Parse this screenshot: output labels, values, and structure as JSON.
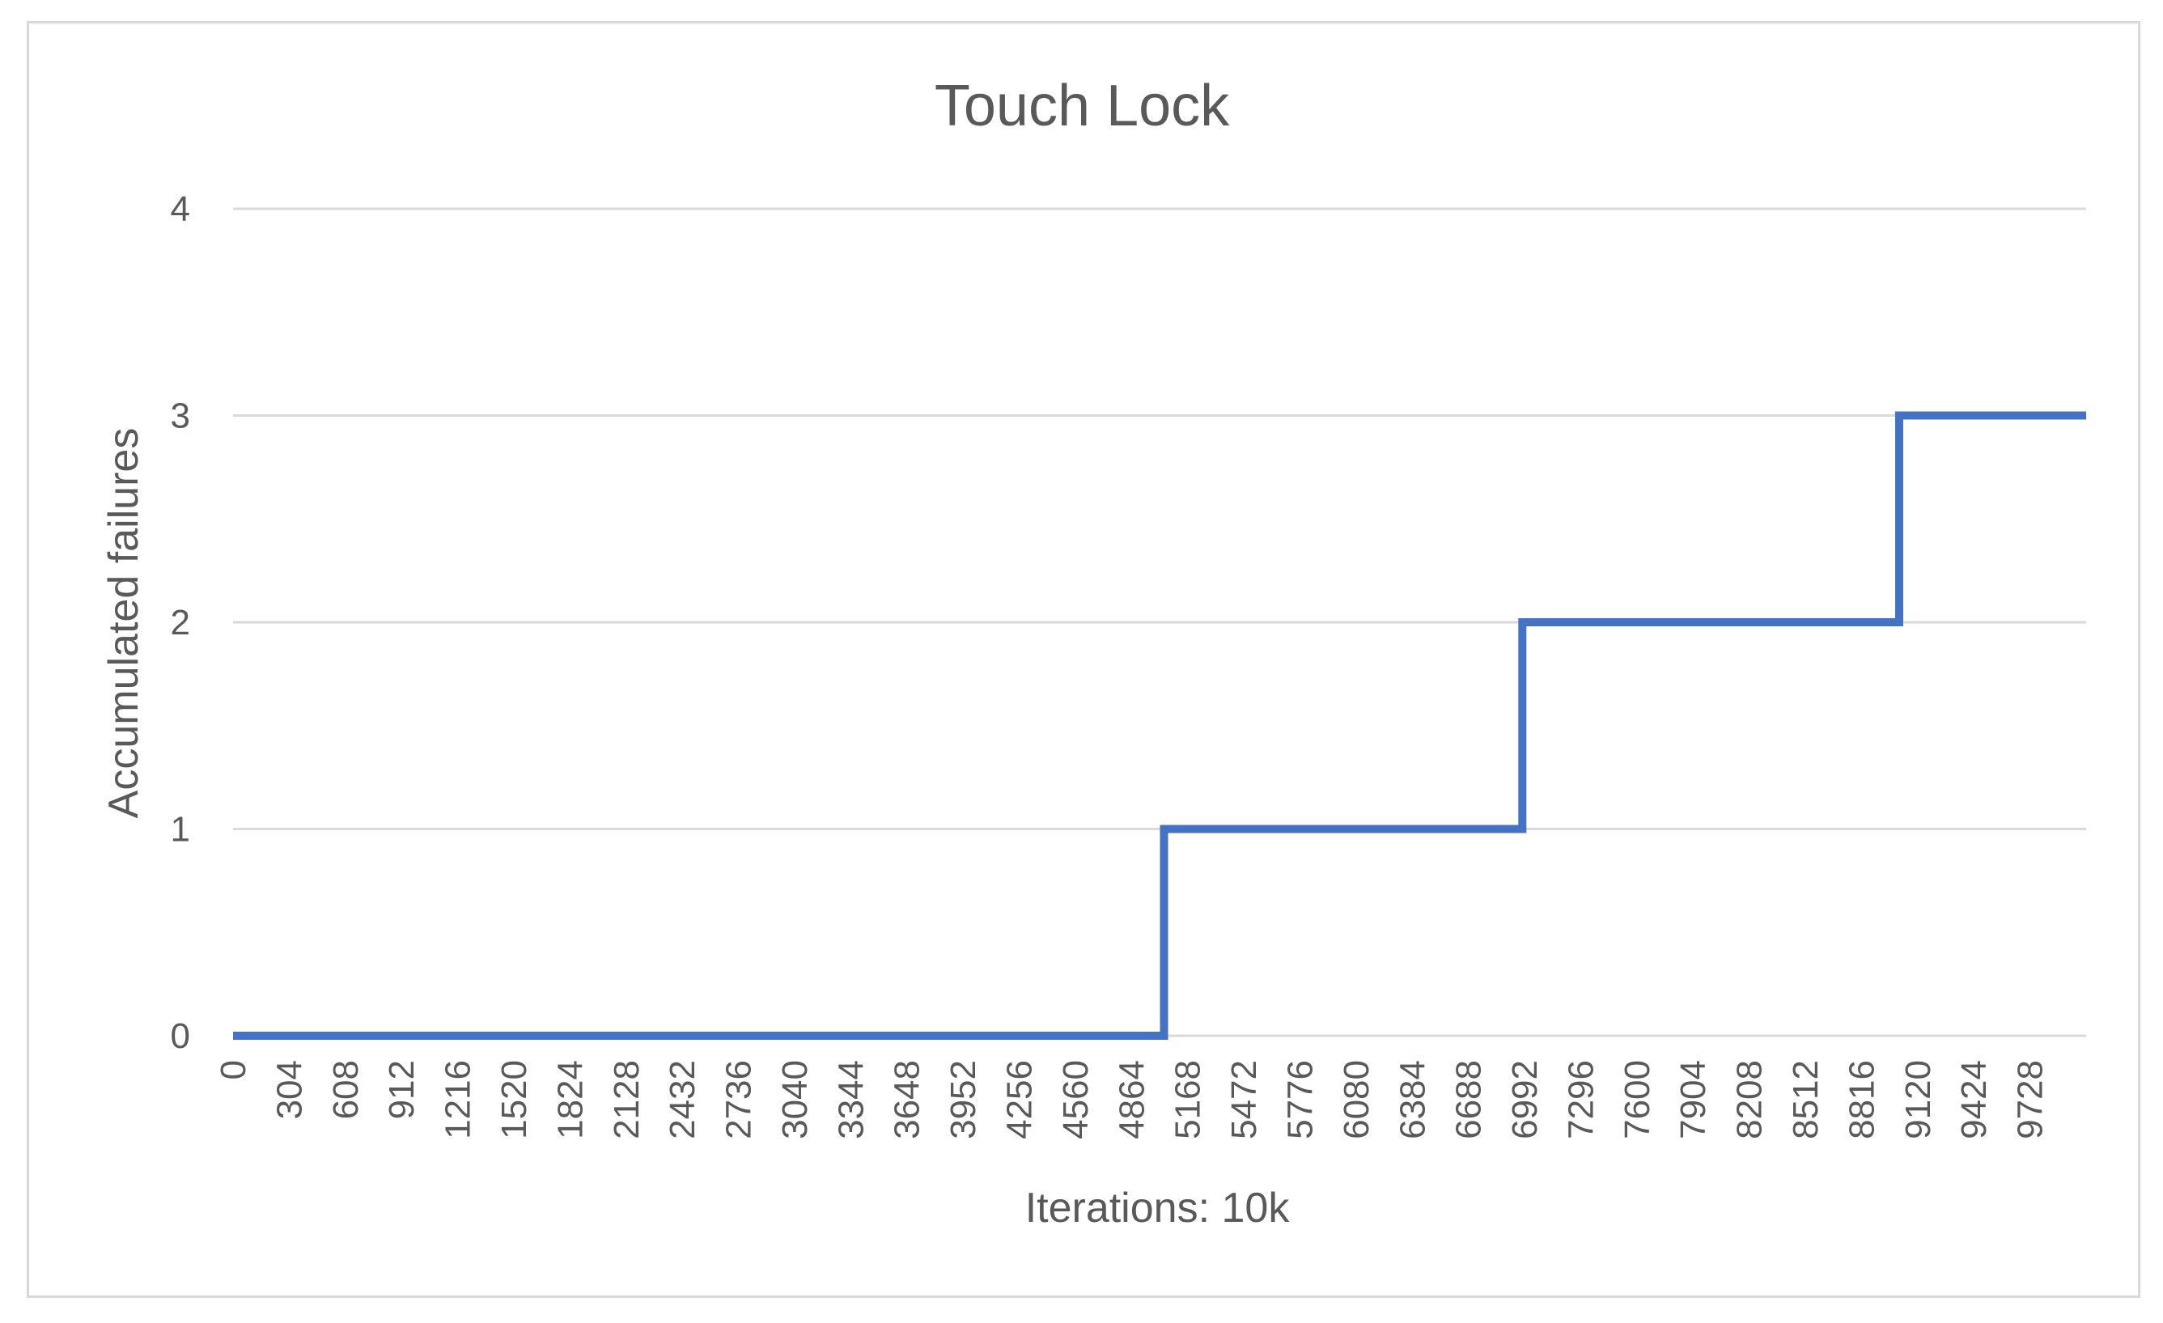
{
  "chart_data": {
    "type": "line",
    "title": "Touch Lock",
    "xlabel": "Iterations: 10k",
    "ylabel": "Accumulated failures",
    "xlim": [
      0,
      10032
    ],
    "ylim": [
      0,
      4
    ],
    "y_ticks": [
      0,
      1,
      2,
      3,
      4
    ],
    "x_tick_labels": [
      "0",
      "304",
      "608",
      "912",
      "1216",
      "1520",
      "1824",
      "2128",
      "2432",
      "2736",
      "3040",
      "3344",
      "3648",
      "3952",
      "4256",
      "4560",
      "4864",
      "5168",
      "5472",
      "5776",
      "6080",
      "6384",
      "6688",
      "6992",
      "7296",
      "7600",
      "7904",
      "8208",
      "8512",
      "8816",
      "9120",
      "9424",
      "9728"
    ],
    "grid": true,
    "legend": "none",
    "line_shape": "step",
    "series": [
      {
        "color": "#4472c4",
        "x": [
          0,
          5040,
          5040,
          6980,
          6980,
          9020,
          9020,
          10032
        ],
        "y": [
          0,
          0,
          1,
          1,
          2,
          2,
          3,
          3
        ]
      }
    ]
  }
}
